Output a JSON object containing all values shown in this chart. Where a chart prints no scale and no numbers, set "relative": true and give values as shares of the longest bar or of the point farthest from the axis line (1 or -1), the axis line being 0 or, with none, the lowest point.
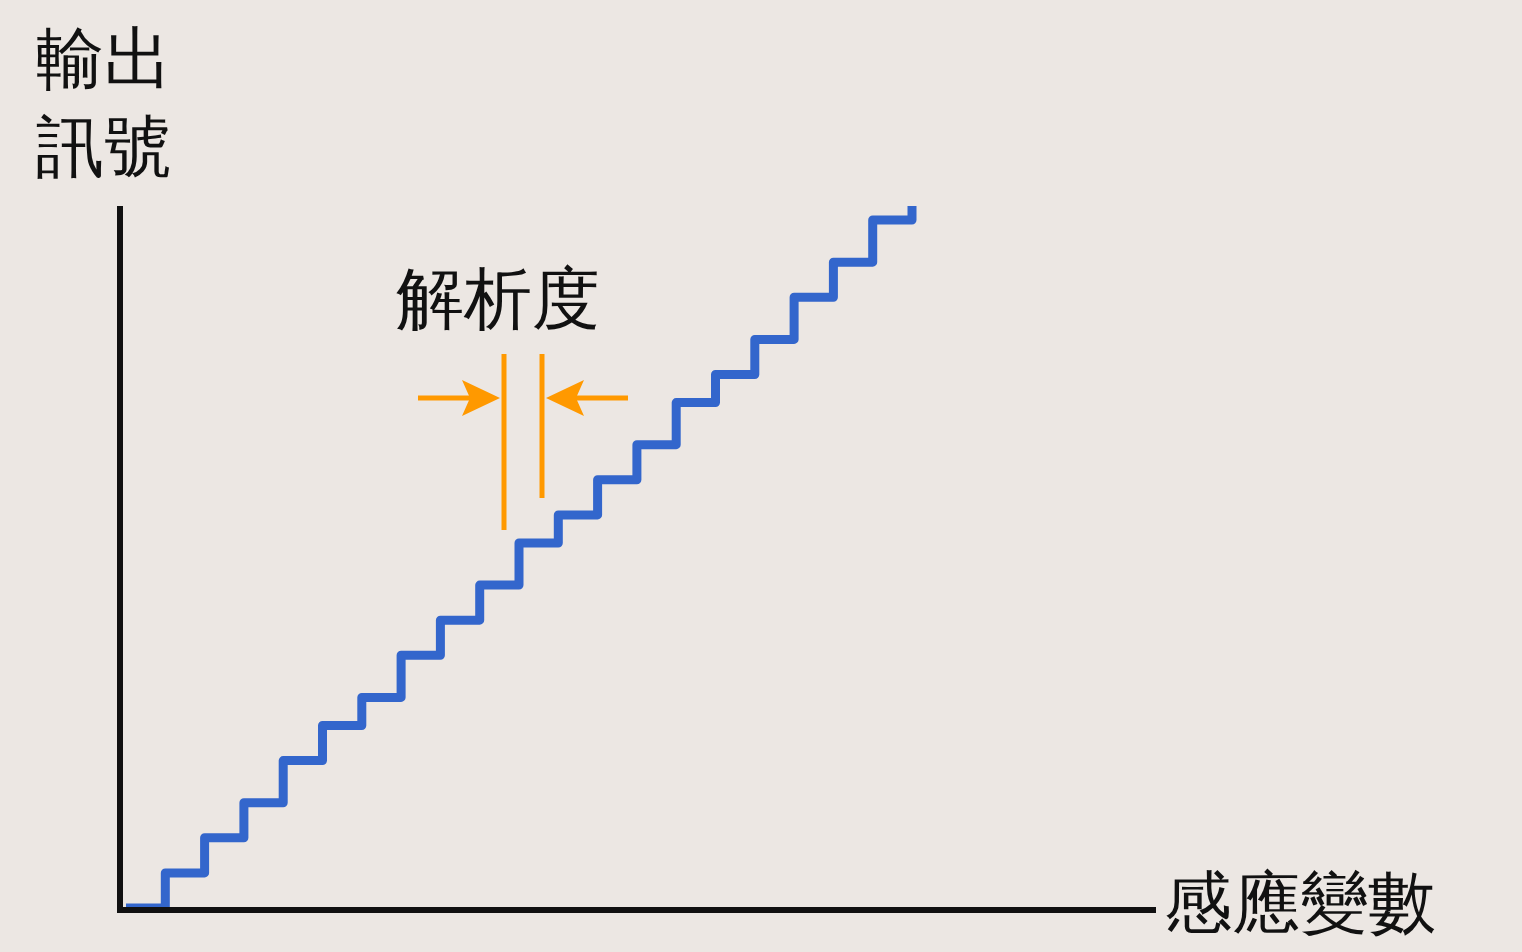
{
  "chart_data": {
    "type": "step",
    "relative": true,
    "xlabel": "感應變數",
    "ylabel": "輸出訊號",
    "annotations": [
      "解析度"
    ],
    "categories": [
      null,
      null,
      null,
      null,
      null,
      null,
      null,
      null,
      null,
      null,
      null,
      null,
      null,
      null,
      null,
      null,
      null,
      null,
      null,
      null,
      null
    ],
    "series": [
      {
        "color": "#3366cc",
        "values": [
          0,
          0.05,
          0.1,
          0.15,
          0.21,
          0.26,
          0.3,
          0.36,
          0.41,
          0.46,
          0.52,
          0.56,
          0.61,
          0.66,
          0.72,
          0.76,
          0.81,
          0.87,
          0.92,
          0.98,
          1
        ]
      }
    ],
    "grid": false
  }
}
